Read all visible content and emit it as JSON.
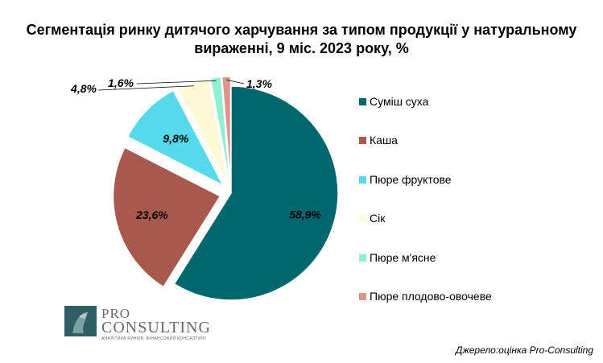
{
  "chart_data": {
    "type": "pie",
    "title": "Сегментація ринку дитячого харчування за типом продукції у натуральному вираженні, 9 міс. 2023 року, %",
    "slices": [
      {
        "name": "Суміш суха",
        "value": 58.9,
        "label": "58,9%",
        "color": "#00676e"
      },
      {
        "name": "Каша",
        "value": 23.6,
        "label": "23,6%",
        "color": "#a9584c"
      },
      {
        "name": "Пюре фруктове",
        "value": 9.8,
        "label": "9,8%",
        "color": "#57d9ec"
      },
      {
        "name": "Сік",
        "value": 4.8,
        "label": "4,8%",
        "color": "#fff9d5"
      },
      {
        "name": "Пюре м'ясне",
        "value": 1.6,
        "label": "1,6%",
        "color": "#8ff0d4"
      },
      {
        "name": "Пюре плодово-овочеве",
        "value": 1.3,
        "label": "1,3%",
        "color": "#e0958c"
      }
    ],
    "legend_position": "right",
    "exploded": true
  },
  "logo": {
    "line1": "PRO",
    "line2": "CONSULTING",
    "tagline": "АНАЛІТИКА РИНКІВ. ФІНАНСОВИЙ КОНСАЛТИНГ"
  },
  "source_note": "Джерело:оцінка Pro-Consulting"
}
